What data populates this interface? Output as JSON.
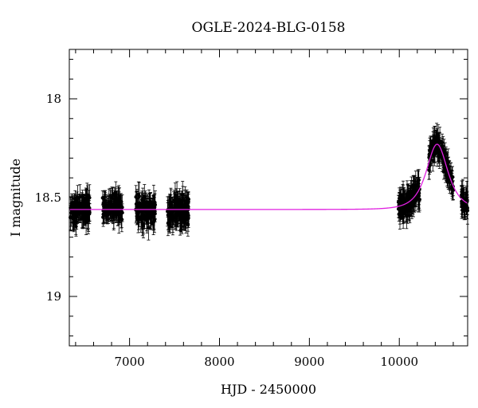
{
  "chart_data": {
    "type": "scatter",
    "title": "OGLE-2024-BLG-0158",
    "xlabel": "HJD - 2450000",
    "ylabel": "I magnitude",
    "xlim": [
      6330,
      10760
    ],
    "ylim": [
      19.25,
      17.75
    ],
    "y_inverted": true,
    "grid": false,
    "x_major_ticks": [
      7000,
      8000,
      9000,
      10000
    ],
    "x_tick_labels": [
      "7000",
      "8000",
      "9000",
      "10000"
    ],
    "y_major_ticks": [
      18,
      18.5,
      19
    ],
    "y_tick_labels": [
      "18",
      "18.5",
      "19"
    ],
    "model_color": "#e020e0",
    "points_color": "#000000",
    "model": {
      "baseline_mag": 18.56,
      "peak_time": 10420,
      "peak_mag": 18.23,
      "einstein_time": 145
    },
    "observing_seasons": [
      {
        "start": 6340,
        "end": 6560,
        "mean_mag": 18.56,
        "scatter": 0.07,
        "error": 0.05
      },
      {
        "start": 6700,
        "end": 6920,
        "mean_mag": 18.55,
        "scatter": 0.06,
        "error": 0.05
      },
      {
        "start": 7070,
        "end": 7290,
        "mean_mag": 18.57,
        "scatter": 0.07,
        "error": 0.05
      },
      {
        "start": 7420,
        "end": 7660,
        "mean_mag": 18.56,
        "scatter": 0.07,
        "error": 0.06
      },
      {
        "start": 9990,
        "end": 10230,
        "mean_mag": null,
        "scatter": 0.06,
        "error": 0.05
      },
      {
        "start": 10330,
        "end": 10600,
        "mean_mag": null,
        "scatter": 0.05,
        "error": 0.05
      },
      {
        "start": 10690,
        "end": 10760,
        "mean_mag": null,
        "scatter": 0.05,
        "error": 0.05
      }
    ]
  }
}
